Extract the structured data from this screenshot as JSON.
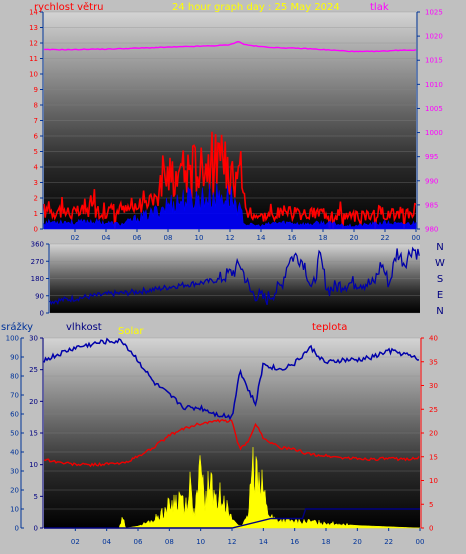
{
  "colors": {
    "background": "#c0c0c0",
    "title": "#ffff00",
    "wind_label": "#ff0000",
    "pressure_label": "#ff00ff",
    "axis_tick": "#003399",
    "right_tick_pressure": "#ff00ff",
    "right_tick_temp": "#ff0000",
    "rain_label": "#003399",
    "humidity_label": "#000080",
    "solar_label": "#ffff00",
    "temp_label": "#ff0000",
    "wind_speed": "#ff0000",
    "wind_gust_fill": "#0000ff",
    "pressure_line": "#ff00ff",
    "direction_line": "#0000aa",
    "humidity_line": "#0000aa",
    "temperature_line": "#ee0000",
    "solar_fill": "#ffff00",
    "rain_line": "#000080"
  },
  "chart_data": [
    {
      "type": "line",
      "title": "24 hour graph day : 25 May 2024",
      "left_axis_label": "rychlost větru",
      "right_axis_label": "tlak",
      "x_ticks": [
        "02",
        "04",
        "06",
        "08",
        "10",
        "12",
        "14",
        "16",
        "18",
        "20",
        "22",
        "00"
      ],
      "x_range_hours": [
        0,
        24
      ],
      "y_left_ticks": [
        "0",
        "1",
        "2",
        "3",
        "4",
        "5",
        "6",
        "7",
        "8",
        "9",
        "10",
        "11",
        "12",
        "13",
        "14"
      ],
      "y_left_range": [
        0,
        14
      ],
      "y_right_ticks": [
        "980",
        "985",
        "990",
        "995",
        "1000",
        "1005",
        "1010",
        "1015",
        "1020",
        "1025"
      ],
      "y_right_range": [
        980,
        1025
      ],
      "series": [
        {
          "name": "tlak",
          "x": [
            0,
            1,
            2,
            3,
            4,
            5,
            6,
            7,
            8,
            9,
            10,
            11,
            12,
            12.5,
            13,
            14,
            15,
            16,
            17,
            18,
            19,
            20,
            21,
            22,
            23,
            24
          ],
          "y": [
            1017.2,
            1017.2,
            1017.2,
            1017.3,
            1017.3,
            1017.4,
            1017.5,
            1017.6,
            1017.7,
            1017.8,
            1017.9,
            1018.0,
            1018.2,
            1018.9,
            1018.2,
            1017.8,
            1017.6,
            1017.5,
            1017.4,
            1017.2,
            1017.0,
            1016.8,
            1016.8,
            1016.9,
            1017.1,
            1017.1
          ]
        },
        {
          "name": "speed",
          "x": [
            0,
            1,
            2,
            3,
            4,
            5,
            6,
            7,
            8,
            9,
            10,
            11,
            12,
            12.5,
            13,
            14,
            15,
            16,
            17,
            18,
            19,
            20,
            21,
            22,
            23,
            24
          ],
          "y": [
            1.2,
            1.2,
            1.0,
            1.3,
            1.2,
            1.1,
            1.4,
            2.2,
            3.5,
            3.7,
            4.2,
            4.5,
            4.0,
            5.5,
            1.3,
            0.8,
            1.0,
            1.0,
            0.9,
            1.1,
            1.0,
            0.8,
            1.0,
            1.1,
            1.0,
            1.2
          ]
        },
        {
          "name": "gust",
          "x": [
            0,
            1,
            2,
            3,
            4,
            5,
            6,
            7,
            8,
            9,
            10,
            11,
            12,
            12.5,
            13,
            14,
            15,
            16,
            17,
            18,
            19,
            20,
            21,
            22,
            23,
            24
          ],
          "y": [
            0.4,
            0.5,
            0.4,
            0.5,
            0.4,
            0.3,
            0.7,
            1.0,
            1.6,
            1.9,
            2.0,
            2.1,
            2.1,
            1.5,
            0.3,
            0.2,
            0.4,
            0.4,
            0.3,
            0.4,
            0.3,
            0.2,
            0.3,
            0.4,
            0.3,
            0.4
          ]
        }
      ]
    },
    {
      "type": "line",
      "left_axis_label": "",
      "y_left_ticks": [
        "0",
        "90",
        "180",
        "270",
        "360"
      ],
      "y_left_range": [
        0,
        360
      ],
      "compass_labels": [
        "N",
        "W",
        "S",
        "E",
        "N"
      ],
      "x_range_hours": [
        0,
        24
      ],
      "series": [
        {
          "name": "direction",
          "x": [
            0,
            1,
            2,
            3,
            4,
            5,
            6,
            7,
            8,
            9,
            10,
            11,
            11.5,
            12,
            12.3,
            12.6,
            13,
            14,
            15,
            15.5,
            16,
            16.5,
            17,
            17.5,
            18,
            19,
            20,
            21,
            21.5,
            22,
            22.5,
            23,
            23.5,
            24
          ],
          "y": [
            60,
            70,
            80,
            90,
            100,
            105,
            115,
            125,
            140,
            150,
            160,
            175,
            200,
            220,
            260,
            200,
            110,
            70,
            140,
            280,
            300,
            260,
            110,
            300,
            120,
            150,
            160,
            150,
            260,
            150,
            320,
            260,
            340,
            300
          ]
        }
      ]
    },
    {
      "type": "line",
      "axis_labels": {
        "rain": "srážky",
        "humidity": "vlhkost",
        "solar": "Solar",
        "temperature": "teplota"
      },
      "x_ticks": [
        "02",
        "04",
        "06",
        "08",
        "10",
        "12",
        "14",
        "16",
        "18",
        "20",
        "22",
        "00"
      ],
      "x_range_hours": [
        0,
        24
      ],
      "rain_ticks": [
        "0",
        "10",
        "20",
        "30",
        "40",
        "50",
        "60",
        "70",
        "80",
        "90",
        "100"
      ],
      "rain_range": [
        0,
        100
      ],
      "humidity_ticks": [
        "0",
        "5",
        "10",
        "15",
        "20",
        "25",
        "30"
      ],
      "humidity_range": [
        0,
        30
      ],
      "temperature_ticks": [
        "0",
        "5",
        "10",
        "15",
        "20",
        "25",
        "30",
        "35",
        "40"
      ],
      "temperature_range": [
        0,
        40
      ],
      "series": [
        {
          "name": "vlhkost",
          "x": [
            0,
            1,
            2,
            3,
            4,
            5,
            6,
            7,
            8,
            9,
            10,
            11,
            12,
            12.5,
            13,
            13.5,
            14,
            15,
            16,
            17,
            18,
            19,
            20,
            21,
            22,
            23,
            24
          ],
          "y": [
            26.5,
            27.5,
            28.5,
            29.0,
            29.5,
            29.5,
            26.5,
            23.0,
            21.0,
            19.0,
            19.0,
            18.0,
            17.5,
            25.0,
            22.0,
            19.5,
            26.0,
            25.0,
            26.0,
            28.5,
            26.0,
            26.5,
            26.5,
            27.0,
            28.0,
            27.5,
            26.5
          ]
        },
        {
          "name": "teplota",
          "x": [
            0,
            1,
            2,
            3,
            4,
            5,
            6,
            7,
            8,
            9,
            10,
            11,
            12,
            12.5,
            13,
            13.5,
            14,
            15,
            16,
            17,
            18,
            19,
            20,
            21,
            22,
            23,
            24
          ],
          "y": [
            14.5,
            13.8,
            13.4,
            13.3,
            13.5,
            13.6,
            15.0,
            17.0,
            19.5,
            21.0,
            22.0,
            22.5,
            22.5,
            16.5,
            18.0,
            22.0,
            19.0,
            17.0,
            16.5,
            15.5,
            15.2,
            14.8,
            14.6,
            14.5,
            14.6,
            14.5,
            14.8
          ]
        },
        {
          "name": "srážky",
          "x": [
            0,
            12.0,
            12.0,
            14.5,
            16.5,
            16.7,
            24
          ],
          "y": [
            0,
            0,
            0,
            5,
            5,
            10,
            10
          ]
        },
        {
          "name": "Solar",
          "x": [
            0,
            4.8,
            5.0,
            5.2,
            6.0,
            7.0,
            8.0,
            8.8,
            9.0,
            9.3,
            9.6,
            10.0,
            10.3,
            10.6,
            11.0,
            11.4,
            11.8,
            12.2,
            12.6,
            13.0,
            13.3,
            13.6,
            13.9,
            14.2,
            14.6,
            15.0,
            16.0,
            17.0,
            18.0,
            19.0,
            20.0,
            21.0,
            22.0,
            23.0,
            24
          ],
          "y": [
            0,
            0,
            2,
            0,
            0.3,
            1.2,
            3.5,
            5.0,
            3.0,
            7.0,
            2.0,
            9.0,
            4.0,
            8.0,
            3.5,
            6.5,
            2.0,
            1.0,
            0.3,
            1.5,
            9.0,
            10.0,
            8.0,
            3.0,
            1.5,
            1.2,
            1.0,
            1.0,
            0.8,
            0.6,
            0.4,
            0.3,
            0.2,
            0.1,
            0
          ]
        }
      ]
    }
  ]
}
